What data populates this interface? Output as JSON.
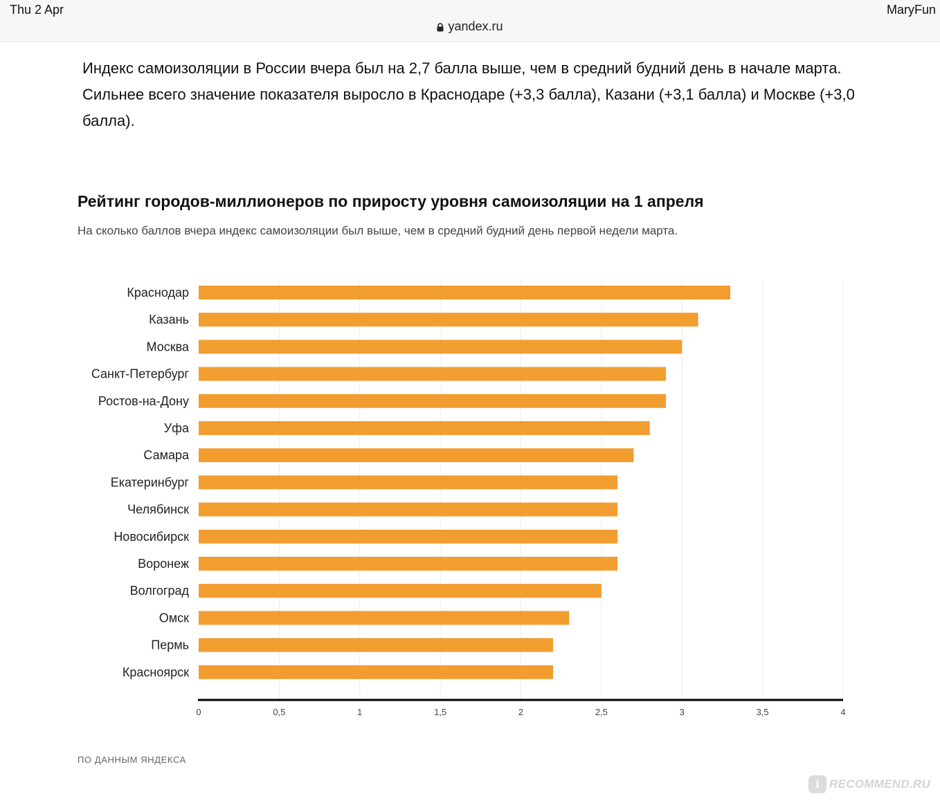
{
  "statusbar": {
    "date": "Thu 2 Apr",
    "user": "MaryFun",
    "url": "yandex.ru"
  },
  "article": {
    "intro": "Индекс самоизоляции в России вчера был на 2,7 балла выше, чем в средний будний день в начале марта. Сильнее всего значение показателя выросло в Краснодаре (+3,3 балла), Казани (+3,1 балла) и Москве (+3,0 балла)."
  },
  "chart": {
    "title": "Рейтинг городов-миллионеров по приросту уровня самоизоляции на 1 апреля",
    "subtitle": "На сколько баллов вчера индекс самоизоляции был выше, чем в средний будний день первой недели марта.",
    "source": "ПО ДАННЫМ ЯНДЕКСА"
  },
  "watermark": {
    "badge": "i",
    "text": "RECOMMEND.RU"
  },
  "chart_data": {
    "type": "bar",
    "orientation": "horizontal",
    "categories": [
      "Краснодар",
      "Казань",
      "Москва",
      "Санкт-Петербург",
      "Ростов-на-Дону",
      "Уфа",
      "Самара",
      "Екатеринбург",
      "Челябинск",
      "Новосибирск",
      "Воронеж",
      "Волгоград",
      "Омск",
      "Пермь",
      "Красноярск"
    ],
    "values": [
      3.3,
      3.1,
      3.0,
      2.9,
      2.9,
      2.8,
      2.7,
      2.6,
      2.6,
      2.6,
      2.6,
      2.5,
      2.3,
      2.2,
      2.2
    ],
    "xlim": [
      0,
      4
    ],
    "xticks": [
      0,
      0.5,
      1,
      1.5,
      2,
      2.5,
      3,
      3.5,
      4
    ],
    "xtick_labels": [
      "0",
      "0,5",
      "1",
      "1,5",
      "2",
      "2,5",
      "3",
      "3,5",
      "4"
    ],
    "bar_color": "#f29d2f",
    "grid": "vertical"
  }
}
